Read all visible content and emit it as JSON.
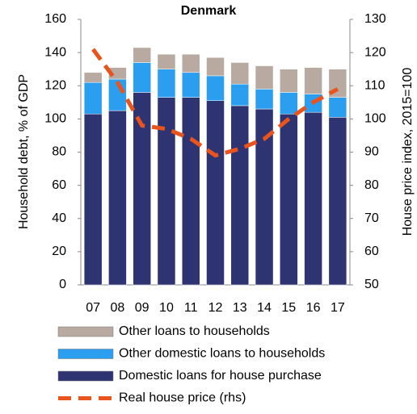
{
  "chart_data": {
    "type": "bar",
    "title": "Denmark",
    "y_label": "Household debt, % of GDP",
    "y2_label": "House price index, 2015=100",
    "categories": [
      "07",
      "08",
      "09",
      "10",
      "11",
      "12",
      "13",
      "14",
      "15",
      "16",
      "17"
    ],
    "stacked": true,
    "series": [
      {
        "name": "Domestic loans for house purchase",
        "color": "#2e3372",
        "values": [
          103,
          105,
          116,
          113,
          113,
          111,
          108,
          106,
          103,
          104,
          101
        ]
      },
      {
        "name": "Other domestic loans to households",
        "color": "#2b9ef0",
        "values": [
          19,
          19,
          18,
          17,
          15,
          15,
          13,
          12,
          13,
          11,
          12
        ]
      },
      {
        "name": "Other loans to households",
        "color": "#b8aaa0",
        "values": [
          6,
          7,
          9,
          9,
          11,
          11,
          13,
          14,
          14,
          16,
          17
        ]
      },
      {
        "name": "Real house price (rhs)",
        "type": "line",
        "axis": "y2",
        "color": "#e8541c",
        "values": [
          121,
          111,
          98,
          97,
          94,
          89,
          91,
          94,
          100,
          105,
          109
        ]
      }
    ],
    "ylim": [
      0,
      160
    ],
    "yticks": [
      0,
      20,
      40,
      60,
      80,
      100,
      120,
      140,
      160
    ],
    "y2lim": [
      50,
      130
    ],
    "y2ticks": [
      50,
      60,
      70,
      80,
      90,
      100,
      110,
      120,
      130
    ]
  }
}
